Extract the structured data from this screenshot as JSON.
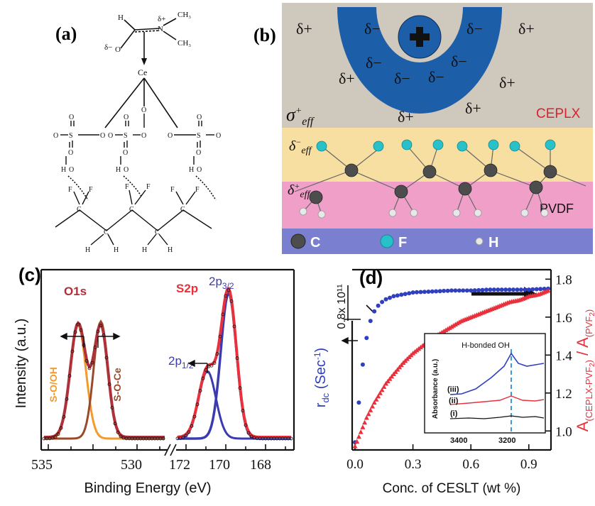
{
  "panel_labels": {
    "a": "(a)",
    "b": "(b)",
    "c": "(c)",
    "d": "(d)"
  },
  "panel_a": {
    "atoms": {
      "ce": "Ce",
      "h": "H",
      "o": "O",
      "s": "S",
      "f": "F",
      "c": "C",
      "n": "N",
      "delta_plus": "δ+",
      "delta_minus": "δ−",
      "ch3": "CH₃"
    }
  },
  "panel_b": {
    "deltas": {
      "plus": "δ+",
      "minus": "δ−"
    },
    "sigma": "σ",
    "sigma_sup": "+",
    "eff": "eff",
    "delta_sym": "δ",
    "minus_sup": "−",
    "plus_sup": "+",
    "ceplx": "CEPLX",
    "pvdf": "PVDF",
    "legend": [
      {
        "label": "C",
        "color": "#4d4d4d"
      },
      {
        "label": "F",
        "color": "#29c1c9"
      },
      {
        "label": "H",
        "color": "#dcdcdc"
      }
    ],
    "colors": {
      "top": "#cfc8bd",
      "cation": "#1d5ea8",
      "yellow": "#f7dfa1",
      "pink": "#ef9fc8",
      "bottom": "#7b7fd0"
    }
  },
  "panel_c": {
    "ylabel": "Intensity (a.u.)",
    "xlabel": "Binding Energy (eV)",
    "xticks_left": [
      "535",
      "530"
    ],
    "xticks_right": [
      "172",
      "170",
      "168"
    ],
    "peaks": {
      "o1s": "O1s",
      "s2p": "S2p",
      "s2p32_main": "2p",
      "s2p32_sub": "3/2",
      "s2p12_main": "2p",
      "s2p12_sub": "1/2",
      "so_oh": "S-O/OH",
      "so_ce": "S-O-Ce"
    },
    "colors": {
      "o1s": "#b0303a",
      "s2p": "#e8313c",
      "so_oh": "#f39a2a",
      "so_ce": "#9a4a2a",
      "s2p_fit": "#3b3bb0"
    }
  },
  "chart_data": {
    "type": "scatter",
    "xlabel": "Conc. of CESLT (wt %)",
    "ylabel_left": "r_dc (Sec⁻¹)",
    "ylabel_right": "A(CEPLX-PVF₂) / A(PVF₂)",
    "left_axis_note": "0.8x 10¹¹",
    "xlim": [
      0.0,
      1.0
    ],
    "ylim_right": [
      0.9,
      1.85
    ],
    "xticks": [
      "0.0",
      "0.3",
      "0.6",
      "0.9"
    ],
    "yticks_right": [
      "1.0",
      "1.2",
      "1.4",
      "1.6",
      "1.8"
    ],
    "series": [
      {
        "color": "#2f3fc0",
        "points": [
          [
            0.0,
            0.94
          ],
          [
            0.01,
            1.04
          ],
          [
            0.02,
            1.15
          ],
          [
            0.03,
            1.26
          ],
          [
            0.04,
            1.35
          ],
          [
            0.05,
            1.43
          ],
          [
            0.06,
            1.49
          ],
          [
            0.07,
            1.54
          ],
          [
            0.08,
            1.58
          ],
          [
            0.1,
            1.63
          ],
          [
            0.12,
            1.66
          ],
          [
            0.15,
            1.69
          ],
          [
            0.2,
            1.71
          ],
          [
            0.3,
            1.73
          ],
          [
            0.4,
            1.735
          ],
          [
            0.5,
            1.74
          ],
          [
            0.6,
            1.74
          ],
          [
            0.7,
            1.745
          ],
          [
            0.8,
            1.745
          ],
          [
            0.9,
            1.745
          ],
          [
            1.0,
            1.75
          ]
        ]
      },
      {
        "color": "#e8313c",
        "points": [
          [
            0.0,
            0.92
          ],
          [
            0.02,
            0.97
          ],
          [
            0.04,
            1.02
          ],
          [
            0.06,
            1.07
          ],
          [
            0.08,
            1.11
          ],
          [
            0.1,
            1.15
          ],
          [
            0.13,
            1.2
          ],
          [
            0.16,
            1.25
          ],
          [
            0.2,
            1.3
          ],
          [
            0.25,
            1.36
          ],
          [
            0.3,
            1.41
          ],
          [
            0.35,
            1.45
          ],
          [
            0.4,
            1.49
          ],
          [
            0.45,
            1.52
          ],
          [
            0.5,
            1.55
          ],
          [
            0.55,
            1.58
          ],
          [
            0.6,
            1.6
          ],
          [
            0.65,
            1.62
          ],
          [
            0.7,
            1.64
          ],
          [
            0.75,
            1.66
          ],
          [
            0.8,
            1.68
          ],
          [
            0.85,
            1.69
          ],
          [
            0.9,
            1.71
          ],
          [
            0.95,
            1.72
          ],
          [
            1.0,
            1.74
          ]
        ]
      }
    ],
    "inset": {
      "ylabel": "Absorbance (a.u.)",
      "xticks": [
        "3400",
        "3200"
      ],
      "annotation": "H-bonded OH",
      "traces": [
        {
          "label": "(iii)",
          "color": "#2f3fc0"
        },
        {
          "label": "(ii)",
          "color": "#e8313c"
        },
        {
          "label": "(i)",
          "color": "#111111"
        }
      ]
    }
  }
}
